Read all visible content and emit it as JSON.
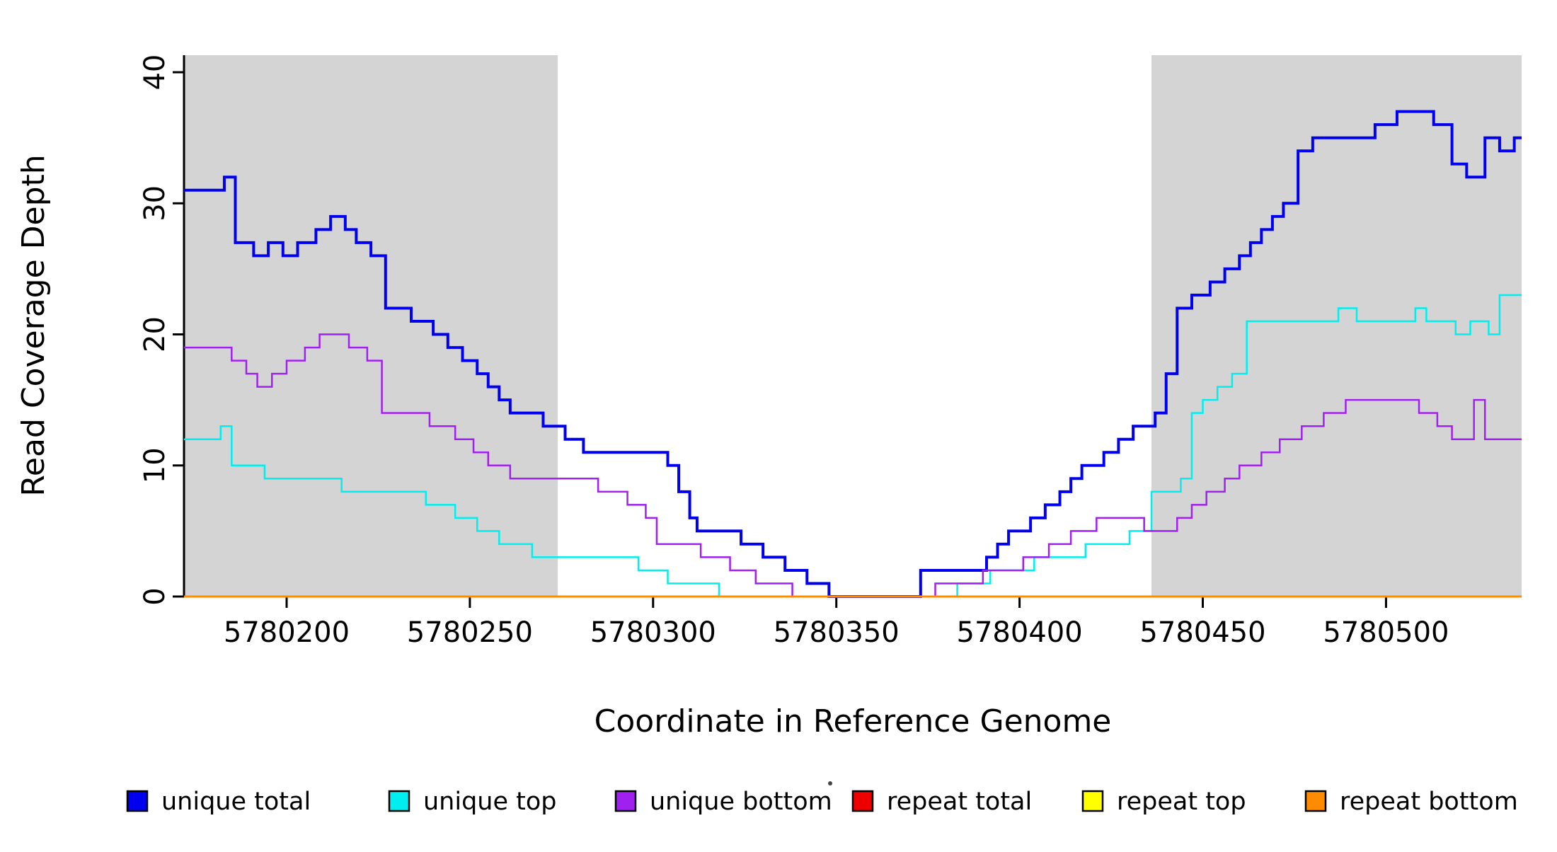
{
  "chart_data": {
    "type": "line",
    "step": true,
    "title": "",
    "xlabel": "Coordinate in Reference Genome",
    "ylabel": "Read Coverage Depth",
    "xlim": [
      5780172,
      5780537
    ],
    "ylim": [
      0,
      41.3
    ],
    "x_ticks": [
      5780200,
      5780250,
      5780300,
      5780350,
      5780400,
      5780450,
      5780500
    ],
    "y_ticks": [
      0,
      10,
      20,
      30,
      40
    ],
    "grid": false,
    "legend_position": "bottom",
    "shaded_regions": [
      {
        "name": "left-gray-region",
        "x0": 5780172,
        "x1": 5780274,
        "color": "#d4d4d4"
      },
      {
        "name": "right-gray-region",
        "x0": 5780436,
        "x1": 5780537,
        "color": "#d4d4d4"
      }
    ],
    "series": [
      {
        "name": "unique total",
        "color": "#0000ee",
        "width": 4,
        "points": [
          [
            5780172,
            31
          ],
          [
            5780183,
            32
          ],
          [
            5780186,
            27
          ],
          [
            5780191,
            26
          ],
          [
            5780195,
            27
          ],
          [
            5780199,
            26
          ],
          [
            5780203,
            27
          ],
          [
            5780208,
            28
          ],
          [
            5780212,
            29
          ],
          [
            5780216,
            28
          ],
          [
            5780219,
            27
          ],
          [
            5780223,
            26
          ],
          [
            5780227,
            22
          ],
          [
            5780234,
            21
          ],
          [
            5780240,
            20
          ],
          [
            5780244,
            19
          ],
          [
            5780248,
            18
          ],
          [
            5780252,
            17
          ],
          [
            5780255,
            16
          ],
          [
            5780258,
            15
          ],
          [
            5780261,
            14
          ],
          [
            5780270,
            13
          ],
          [
            5780276,
            12
          ],
          [
            5780281,
            11
          ],
          [
            5780304,
            10
          ],
          [
            5780307,
            8
          ],
          [
            5780310,
            6
          ],
          [
            5780312,
            5
          ],
          [
            5780324,
            4
          ],
          [
            5780330,
            3
          ],
          [
            5780336,
            2
          ],
          [
            5780342,
            1
          ],
          [
            5780348,
            0
          ],
          [
            5780373,
            2
          ],
          [
            5780391,
            3
          ],
          [
            5780394,
            4
          ],
          [
            5780397,
            5
          ],
          [
            5780403,
            6
          ],
          [
            5780407,
            7
          ],
          [
            5780411,
            8
          ],
          [
            5780414,
            9
          ],
          [
            5780417,
            10
          ],
          [
            5780423,
            11
          ],
          [
            5780427,
            12
          ],
          [
            5780431,
            13
          ],
          [
            5780437,
            14
          ],
          [
            5780440,
            17
          ],
          [
            5780443,
            22
          ],
          [
            5780447,
            23
          ],
          [
            5780452,
            24
          ],
          [
            5780456,
            25
          ],
          [
            5780460,
            26
          ],
          [
            5780463,
            27
          ],
          [
            5780466,
            28
          ],
          [
            5780469,
            29
          ],
          [
            5780472,
            30
          ],
          [
            5780476,
            34
          ],
          [
            5780480,
            35
          ],
          [
            5780497,
            36
          ],
          [
            5780503,
            37
          ],
          [
            5780513,
            36
          ],
          [
            5780518,
            33
          ],
          [
            5780522,
            32
          ],
          [
            5780527,
            35
          ],
          [
            5780531,
            34
          ],
          [
            5780535,
            35
          ]
        ]
      },
      {
        "name": "unique top",
        "color": "#00eeee",
        "width": 2.5,
        "points": [
          [
            5780172,
            12
          ],
          [
            5780182,
            13
          ],
          [
            5780185,
            10
          ],
          [
            5780194,
            9
          ],
          [
            5780215,
            8
          ],
          [
            5780238,
            7
          ],
          [
            5780246,
            6
          ],
          [
            5780252,
            5
          ],
          [
            5780258,
            4
          ],
          [
            5780267,
            3
          ],
          [
            5780296,
            2
          ],
          [
            5780304,
            1
          ],
          [
            5780318,
            0
          ],
          [
            5780383,
            1
          ],
          [
            5780392,
            2
          ],
          [
            5780404,
            3
          ],
          [
            5780418,
            4
          ],
          [
            5780430,
            5
          ],
          [
            5780436,
            8
          ],
          [
            5780444,
            9
          ],
          [
            5780447,
            14
          ],
          [
            5780450,
            15
          ],
          [
            5780454,
            16
          ],
          [
            5780458,
            17
          ],
          [
            5780462,
            21
          ],
          [
            5780487,
            22
          ],
          [
            5780492,
            21
          ],
          [
            5780508,
            22
          ],
          [
            5780511,
            21
          ],
          [
            5780519,
            20
          ],
          [
            5780523,
            21
          ],
          [
            5780528,
            20
          ],
          [
            5780531,
            23
          ]
        ]
      },
      {
        "name": "unique bottom",
        "color": "#a020f0",
        "width": 2.5,
        "points": [
          [
            5780172,
            19
          ],
          [
            5780185,
            18
          ],
          [
            5780189,
            17
          ],
          [
            5780192,
            16
          ],
          [
            5780196,
            17
          ],
          [
            5780200,
            18
          ],
          [
            5780205,
            19
          ],
          [
            5780209,
            20
          ],
          [
            5780217,
            19
          ],
          [
            5780222,
            18
          ],
          [
            5780226,
            14
          ],
          [
            5780239,
            13
          ],
          [
            5780246,
            12
          ],
          [
            5780251,
            11
          ],
          [
            5780255,
            10
          ],
          [
            5780261,
            9
          ],
          [
            5780285,
            8
          ],
          [
            5780293,
            7
          ],
          [
            5780298,
            6
          ],
          [
            5780301,
            4
          ],
          [
            5780313,
            3
          ],
          [
            5780321,
            2
          ],
          [
            5780328,
            1
          ],
          [
            5780338,
            0
          ],
          [
            5780377,
            1
          ],
          [
            5780390,
            2
          ],
          [
            5780401,
            3
          ],
          [
            5780408,
            4
          ],
          [
            5780414,
            5
          ],
          [
            5780421,
            6
          ],
          [
            5780434,
            5
          ],
          [
            5780443,
            6
          ],
          [
            5780447,
            7
          ],
          [
            5780451,
            8
          ],
          [
            5780456,
            9
          ],
          [
            5780460,
            10
          ],
          [
            5780466,
            11
          ],
          [
            5780471,
            12
          ],
          [
            5780477,
            13
          ],
          [
            5780483,
            14
          ],
          [
            5780489,
            15
          ],
          [
            5780509,
            14
          ],
          [
            5780514,
            13
          ],
          [
            5780518,
            12
          ],
          [
            5780524,
            15
          ],
          [
            5780527,
            12
          ]
        ]
      },
      {
        "name": "repeat total",
        "color": "#ee0000",
        "width": 3,
        "points": [
          [
            5780172,
            0
          ]
        ]
      },
      {
        "name": "repeat top",
        "color": "#ffff00",
        "width": 3,
        "points": [
          [
            5780172,
            0
          ]
        ]
      },
      {
        "name": "repeat bottom",
        "color": "#ff8c00",
        "width": 3,
        "points": [
          [
            5780172,
            0
          ]
        ]
      }
    ],
    "legend": [
      {
        "label": "unique total",
        "color": "#0000ee"
      },
      {
        "label": "unique top",
        "color": "#00eeee"
      },
      {
        "label": "unique bottom",
        "color": "#a020f0"
      },
      {
        "label": "repeat total",
        "color": "#ee0000"
      },
      {
        "label": "repeat top",
        "color": "#ffff00"
      },
      {
        "label": "repeat bottom",
        "color": "#ff8c00"
      }
    ]
  }
}
